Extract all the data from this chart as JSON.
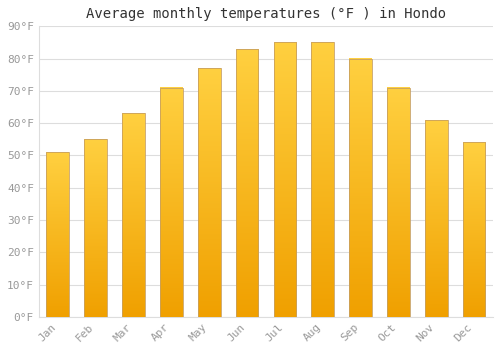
{
  "months": [
    "Jan",
    "Feb",
    "Mar",
    "Apr",
    "May",
    "Jun",
    "Jul",
    "Aug",
    "Sep",
    "Oct",
    "Nov",
    "Dec"
  ],
  "values": [
    51,
    55,
    63,
    71,
    77,
    83,
    85,
    85,
    80,
    71,
    61,
    54
  ],
  "title": "Average monthly temperatures (°F ) in Hondo",
  "ylim": [
    0,
    90
  ],
  "yticks": [
    0,
    10,
    20,
    30,
    40,
    50,
    60,
    70,
    80,
    90
  ],
  "ytick_labels": [
    "0°F",
    "10°F",
    "20°F",
    "30°F",
    "40°F",
    "50°F",
    "60°F",
    "70°F",
    "80°F",
    "90°F"
  ],
  "bar_color_bottom": "#F0A000",
  "bar_color_top": "#FFD040",
  "bar_edge_color": "#C8A060",
  "background_color": "#FFFFFF",
  "plot_bg_color": "#FFFFFF",
  "grid_color": "#DDDDDD",
  "title_fontsize": 10,
  "tick_fontsize": 8,
  "tick_color": "#999999",
  "title_color": "#333333",
  "font_family": "monospace",
  "bar_width": 0.6
}
